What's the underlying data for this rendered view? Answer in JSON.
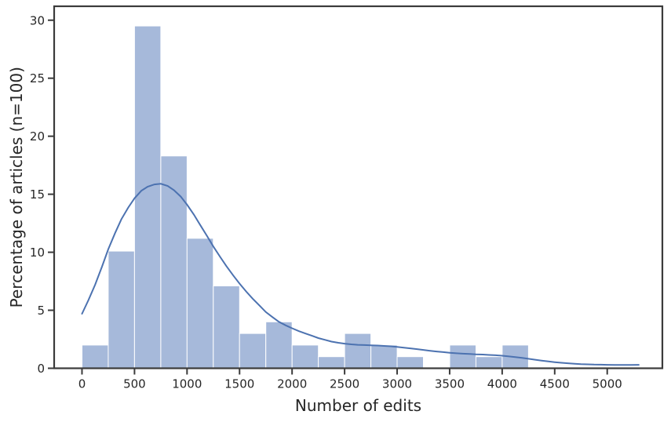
{
  "chart_data": {
    "type": "histogram",
    "title": "",
    "xlabel": "Number of edits",
    "ylabel": "Percentage of articles (n=100)",
    "legend": null,
    "grid": false,
    "bin_start": 0,
    "bin_width": 250,
    "bin_percentages": [
      2,
      10.1,
      29.5,
      18.3,
      11.2,
      7.1,
      3,
      4,
      2,
      1,
      3,
      2,
      1,
      0,
      2,
      1,
      2
    ],
    "x_ticks": [
      0,
      500,
      1000,
      1500,
      2000,
      2500,
      3000,
      3500,
      4000,
      4500,
      5000
    ],
    "y_ticks": [
      0,
      5,
      10,
      15,
      20,
      25,
      30
    ],
    "xlim": [
      -265,
      5525
    ],
    "ylim": [
      0,
      31.2
    ],
    "kde_points": [
      [
        0,
        4.7
      ],
      [
        60,
        5.85
      ],
      [
        125,
        7.2
      ],
      [
        190,
        8.75
      ],
      [
        250,
        10.25
      ],
      [
        315,
        11.65
      ],
      [
        375,
        12.85
      ],
      [
        440,
        13.85
      ],
      [
        500,
        14.65
      ],
      [
        565,
        15.3
      ],
      [
        625,
        15.65
      ],
      [
        690,
        15.85
      ],
      [
        750,
        15.9
      ],
      [
        815,
        15.72
      ],
      [
        875,
        15.35
      ],
      [
        940,
        14.8
      ],
      [
        1000,
        14.1
      ],
      [
        1065,
        13.25
      ],
      [
        1125,
        12.35
      ],
      [
        1190,
        11.4
      ],
      [
        1250,
        10.5
      ],
      [
        1315,
        9.6
      ],
      [
        1375,
        8.8
      ],
      [
        1440,
        8.0
      ],
      [
        1500,
        7.3
      ],
      [
        1565,
        6.6
      ],
      [
        1625,
        6.0
      ],
      [
        1690,
        5.4
      ],
      [
        1750,
        4.85
      ],
      [
        1815,
        4.4
      ],
      [
        1875,
        4.0
      ],
      [
        1940,
        3.7
      ],
      [
        2000,
        3.45
      ],
      [
        2065,
        3.2
      ],
      [
        2125,
        3.0
      ],
      [
        2190,
        2.8
      ],
      [
        2250,
        2.6
      ],
      [
        2315,
        2.45
      ],
      [
        2375,
        2.3
      ],
      [
        2440,
        2.2
      ],
      [
        2500,
        2.12
      ],
      [
        2565,
        2.06
      ],
      [
        2625,
        2.02
      ],
      [
        2690,
        2.0
      ],
      [
        2750,
        1.98
      ],
      [
        2815,
        1.96
      ],
      [
        2875,
        1.93
      ],
      [
        2940,
        1.89
      ],
      [
        3000,
        1.84
      ],
      [
        3065,
        1.78
      ],
      [
        3125,
        1.72
      ],
      [
        3190,
        1.65
      ],
      [
        3250,
        1.58
      ],
      [
        3315,
        1.51
      ],
      [
        3375,
        1.45
      ],
      [
        3440,
        1.39
      ],
      [
        3500,
        1.34
      ],
      [
        3565,
        1.29
      ],
      [
        3625,
        1.26
      ],
      [
        3690,
        1.23
      ],
      [
        3750,
        1.2
      ],
      [
        3815,
        1.18
      ],
      [
        3875,
        1.15
      ],
      [
        3940,
        1.12
      ],
      [
        4000,
        1.08
      ],
      [
        4065,
        1.02
      ],
      [
        4125,
        0.96
      ],
      [
        4190,
        0.89
      ],
      [
        4250,
        0.82
      ],
      [
        4315,
        0.74
      ],
      [
        4375,
        0.66
      ],
      [
        4440,
        0.59
      ],
      [
        4500,
        0.53
      ],
      [
        4565,
        0.47
      ],
      [
        4625,
        0.43
      ],
      [
        4690,
        0.39
      ],
      [
        4750,
        0.36
      ],
      [
        4815,
        0.34
      ],
      [
        4875,
        0.32
      ],
      [
        4940,
        0.31
      ],
      [
        5000,
        0.3
      ],
      [
        5075,
        0.29
      ],
      [
        5150,
        0.29
      ],
      [
        5225,
        0.29
      ],
      [
        5300,
        0.3
      ]
    ],
    "colors": {
      "bar_fill": "#a6b9da",
      "bar_edge": "#ffffff",
      "kde_line": "#4c72b0",
      "spine": "#3b3b3b",
      "tick": "#3b3b3b",
      "text": "#262626",
      "background": "#ffffff"
    }
  }
}
